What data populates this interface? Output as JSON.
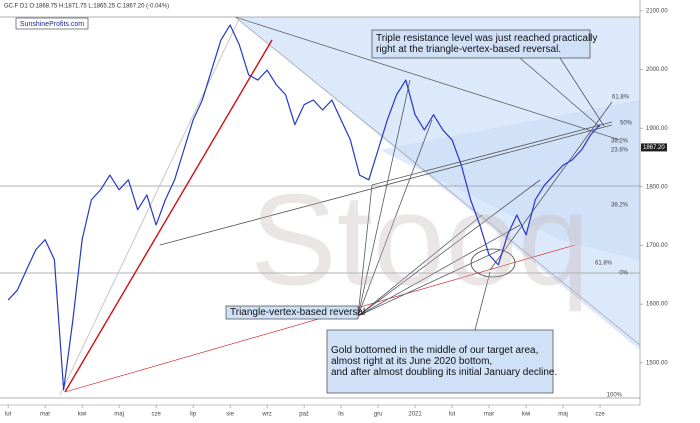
{
  "chart_data": {
    "type": "line",
    "title": "GC.F D1 O:1868.75 H:1871.75 L:1865.25 C:1867.20 (-0.04%)",
    "source_label": "SunshineProfits.com",
    "watermark": "Stooq",
    "color": "#2438c8",
    "x": [
      1.0,
      1.25,
      1.5,
      1.75,
      2.0,
      2.25,
      2.5,
      2.75,
      3.0,
      3.25,
      3.5,
      3.75,
      4.0,
      4.25,
      4.5,
      4.75,
      5.0,
      5.25,
      5.5,
      5.75,
      6.0,
      6.25,
      6.5,
      6.75,
      7.0,
      7.25,
      7.5,
      7.75,
      8.0,
      8.25,
      8.5,
      8.75,
      9.0,
      9.25,
      9.5,
      9.75,
      10.0,
      10.25,
      10.5,
      10.75,
      11.0,
      11.25,
      11.5,
      11.75,
      12.0,
      12.25,
      12.5,
      12.75,
      13.0,
      13.25,
      13.5,
      13.75,
      14.0,
      14.25,
      14.5,
      14.75,
      15.0,
      15.25,
      15.5,
      15.75,
      16.0,
      16.25,
      16.5,
      16.75,
      17.0
    ],
    "values": [
      1607,
      1624,
      1659,
      1693,
      1710,
      1676,
      1454,
      1573,
      1710,
      1778,
      1795,
      1820,
      1795,
      1812,
      1761,
      1786,
      1735,
      1778,
      1812,
      1863,
      1914,
      1948,
      1999,
      2050,
      2076,
      2042,
      1991,
      1982,
      1999,
      1974,
      1957,
      1906,
      1940,
      1948,
      1931,
      1948,
      1914,
      1880,
      1820,
      1812,
      1863,
      1914,
      1957,
      1982,
      1923,
      1897,
      1923,
      1897,
      1880,
      1837,
      1778,
      1735,
      1684,
      1667,
      1718,
      1752,
      1718,
      1778,
      1803,
      1820,
      1837,
      1846,
      1863,
      1889,
      1906
    ],
    "xlim": [
      0.78,
      18.08
    ],
    "xticks": [
      {
        "value": 1,
        "label": "lut"
      },
      {
        "value": 2,
        "label": "mar"
      },
      {
        "value": 3,
        "label": "kwi"
      },
      {
        "value": 4,
        "label": "maj"
      },
      {
        "value": 5,
        "label": "cze"
      },
      {
        "value": 6,
        "label": "lip"
      },
      {
        "value": 7,
        "label": "sie"
      },
      {
        "value": 8,
        "label": "wrz"
      },
      {
        "value": 9,
        "label": "paź"
      },
      {
        "value": 10,
        "label": "lis"
      },
      {
        "value": 11,
        "label": "gru"
      },
      {
        "value": 12,
        "label": "2021"
      },
      {
        "value": 13,
        "label": "lut"
      },
      {
        "value": 14,
        "label": "mar"
      },
      {
        "value": 15,
        "label": "kwi"
      },
      {
        "value": 16,
        "label": "maj"
      },
      {
        "value": 17,
        "label": "cze"
      }
    ],
    "ylim": [
      1440,
      2110
    ],
    "yticks": [
      {
        "value": 1500,
        "label": "1500.00"
      },
      {
        "value": 1600,
        "label": "1600.00"
      },
      {
        "value": 1700,
        "label": "1700.00"
      },
      {
        "value": 1800,
        "label": "1800.00"
      },
      {
        "value": 1900,
        "label": "1900.00"
      },
      {
        "value": 2000,
        "label": "2000.00"
      },
      {
        "value": 2100,
        "label": "2100.00"
      }
    ],
    "price_marker": {
      "value": 1867.2,
      "label": "1867.20"
    },
    "fib_labels": [
      "61.8%",
      "50%",
      "38.2%",
      "23.6%",
      "0%",
      "61.8%",
      "38.2%",
      "100%"
    ],
    "annotations": [
      [
        "Triple resistance level was just reached practically",
        "right at the triangle-vertex-based reversal."
      ],
      [
        "Triangle-vertex-based reversal"
      ],
      [
        "Gold bottomed in the middle of our target area,",
        "almost right at its June 2020 bottom,",
        "and after almost doubling its initial January decline."
      ]
    ]
  }
}
